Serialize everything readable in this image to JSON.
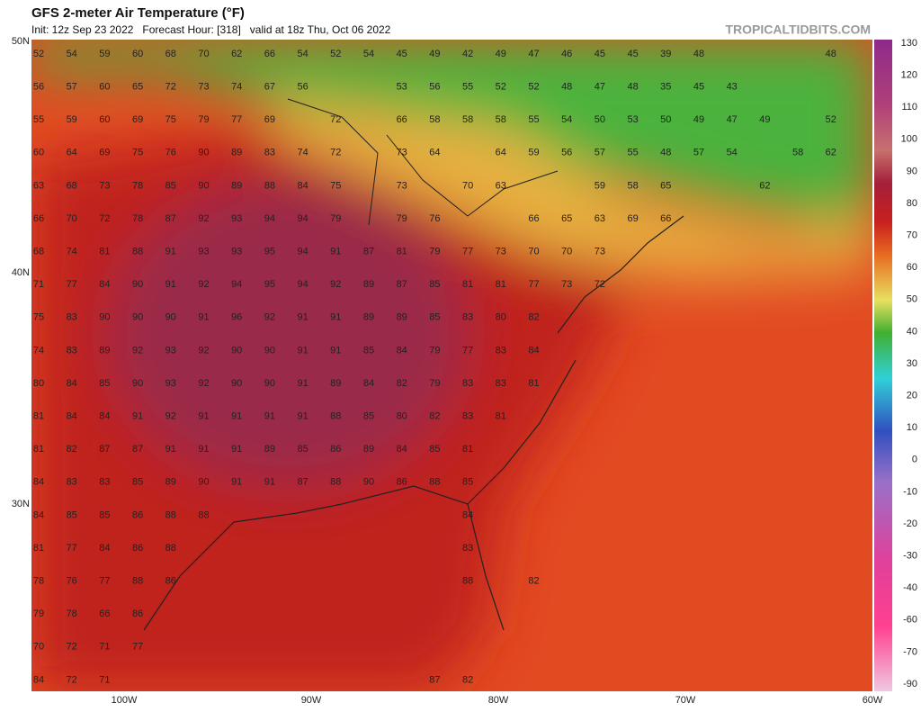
{
  "header": {
    "title": "GFS 2-meter Air Temperature (°F)",
    "subtitle": "Init: 12z Sep 23 2022   Forecast Hour: [318]   valid at 18z Thu, Oct 06 2022",
    "site": "TROPICALTIDBITS.COM"
  },
  "lat_labels": [
    "50N",
    "40N",
    "30N"
  ],
  "lon_labels": [
    "100W",
    "90W",
    "80W",
    "70W",
    "60W"
  ],
  "colorbar": [
    130,
    120,
    110,
    100,
    90,
    80,
    70,
    60,
    50,
    40,
    30,
    20,
    10,
    0,
    -10,
    -20,
    -30,
    -40,
    -60,
    -70,
    -90
  ],
  "stations": [
    [
      52,
      54,
      59,
      60,
      68,
      70,
      62,
      66,
      54,
      52,
      54,
      45,
      49,
      42,
      49,
      47,
      46,
      45,
      45,
      39,
      48,
      null,
      null,
      null,
      48
    ],
    [
      56,
      57,
      60,
      65,
      72,
      73,
      74,
      67,
      56,
      null,
      null,
      53,
      56,
      55,
      52,
      52,
      48,
      47,
      48,
      35,
      45,
      43
    ],
    [
      55,
      59,
      60,
      69,
      75,
      79,
      77,
      69,
      null,
      72,
      null,
      66,
      58,
      58,
      58,
      55,
      54,
      50,
      53,
      50,
      49,
      47,
      49,
      null,
      52
    ],
    [
      60,
      64,
      69,
      75,
      76,
      90,
      89,
      83,
      74,
      72,
      null,
      73,
      64,
      null,
      64,
      59,
      56,
      57,
      55,
      48,
      57,
      54,
      null,
      58,
      62
    ],
    [
      63,
      68,
      73,
      78,
      85,
      90,
      89,
      88,
      84,
      75,
      null,
      73,
      null,
      70,
      63,
      null,
      null,
      59,
      58,
      65,
      null,
      null,
      62
    ],
    [
      66,
      70,
      72,
      78,
      87,
      92,
      93,
      94,
      94,
      79,
      null,
      79,
      76,
      null,
      null,
      66,
      65,
      63,
      69,
      66
    ],
    [
      68,
      74,
      81,
      88,
      91,
      93,
      93,
      95,
      94,
      91,
      87,
      81,
      79,
      77,
      73,
      70,
      70,
      73
    ],
    [
      71,
      77,
      84,
      90,
      91,
      92,
      94,
      95,
      94,
      92,
      89,
      87,
      85,
      81,
      81,
      77,
      73,
      72
    ],
    [
      75,
      83,
      90,
      90,
      90,
      91,
      96,
      92,
      91,
      91,
      89,
      89,
      85,
      83,
      80,
      82
    ],
    [
      74,
      83,
      89,
      92,
      93,
      92,
      90,
      90,
      91,
      91,
      85,
      84,
      79,
      77,
      83,
      84
    ],
    [
      80,
      84,
      85,
      90,
      93,
      92,
      90,
      90,
      91,
      89,
      84,
      82,
      79,
      83,
      83,
      81
    ],
    [
      81,
      84,
      84,
      91,
      92,
      91,
      91,
      91,
      91,
      88,
      85,
      80,
      82,
      83,
      81
    ],
    [
      81,
      82,
      87,
      87,
      91,
      91,
      91,
      89,
      85,
      86,
      89,
      84,
      85,
      81
    ],
    [
      84,
      83,
      83,
      85,
      89,
      90,
      91,
      91,
      87,
      88,
      90,
      86,
      88,
      85
    ],
    [
      84,
      85,
      85,
      86,
      88,
      88,
      null,
      null,
      null,
      null,
      null,
      null,
      null,
      84
    ],
    [
      81,
      77,
      84,
      86,
      88,
      null,
      null,
      null,
      null,
      null,
      null,
      null,
      null,
      83
    ],
    [
      78,
      76,
      77,
      88,
      86,
      null,
      null,
      null,
      null,
      null,
      null,
      null,
      null,
      88,
      null,
      82
    ],
    [
      79,
      78,
      66,
      86
    ],
    [
      70,
      72,
      71,
      77
    ],
    [
      84,
      72,
      71,
      null,
      null,
      null,
      null,
      null,
      null,
      null,
      null,
      null,
      87,
      82
    ]
  ]
}
